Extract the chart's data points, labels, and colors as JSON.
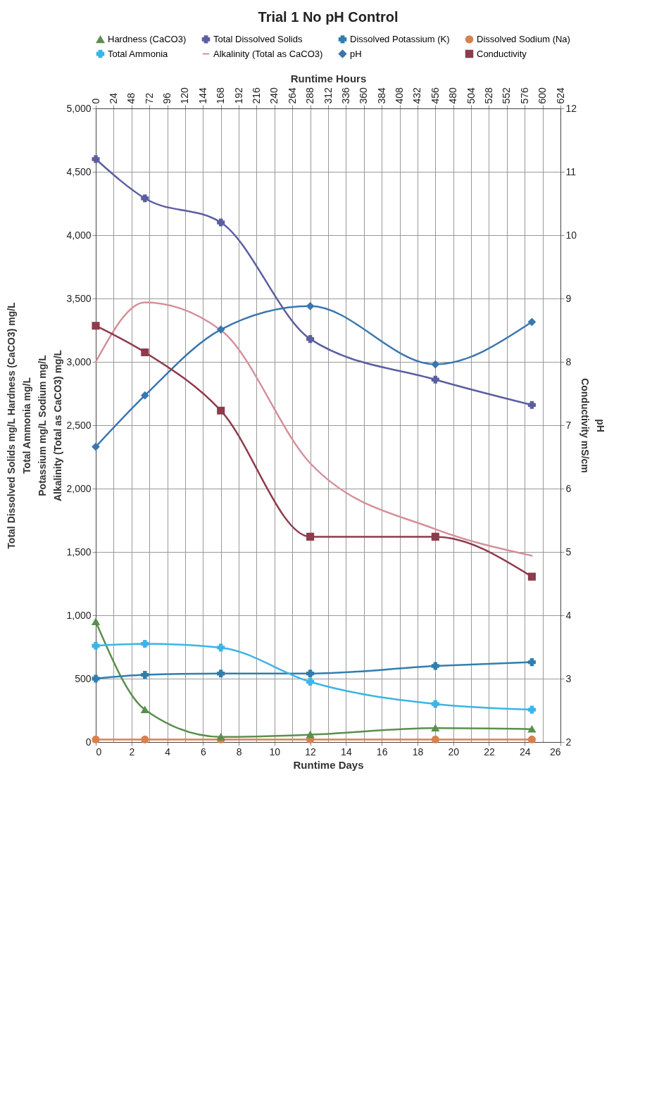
{
  "chart_data": {
    "type": "line",
    "title": "Trial 1 No pH Control",
    "xlabel": "Runtime Days",
    "x2label": "Runtime Hours",
    "ylabel": "Total Dissolved Solids   mg/L          Hardness (CaCO3)   mg/L\nTotal Ammonia   mg/L\nPotassium   mg/L          Sodium   mg/L\nAlkalinity (Total as CaCO3) mg/L",
    "y2label": "pH\nConductivity   mS/cm",
    "x": [
      0,
      2.75,
      7,
      12,
      19,
      24.4
    ],
    "xlim": [
      0,
      26
    ],
    "xticks": [
      0,
      2,
      4,
      6,
      8,
      10,
      12,
      14,
      16,
      18,
      20,
      22,
      24,
      26
    ],
    "x2lim": [
      0,
      624
    ],
    "x2ticks": [
      0,
      24,
      48,
      72,
      96,
      120,
      144,
      168,
      192,
      216,
      240,
      264,
      288,
      312,
      336,
      360,
      384,
      408,
      432,
      456,
      480,
      504,
      528,
      552,
      576,
      600,
      624
    ],
    "ylim": [
      0,
      5000
    ],
    "yticks": [
      0,
      500,
      {
        "value": 1000,
        "label": "1,000"
      },
      {
        "value": 1500,
        "label": "1,500"
      },
      {
        "value": 2000,
        "label": "2,000"
      },
      {
        "value": 2500,
        "label": "2,500"
      },
      {
        "value": 3000,
        "label": "3,000"
      },
      {
        "value": 3500,
        "label": "3,500"
      },
      {
        "value": 4000,
        "label": "4,000"
      },
      {
        "value": 4500,
        "label": "4,500"
      },
      {
        "value": 5000,
        "label": "5,000"
      }
    ],
    "y2lim": [
      2,
      12
    ],
    "y2ticks": [
      2,
      3,
      4,
      5,
      6,
      7,
      8,
      9,
      10,
      11,
      12
    ],
    "grid": true,
    "legend": "top",
    "series": [
      {
        "name": "Hardness (CaCO3)",
        "color": "#5b8f4e",
        "marker": "triangle",
        "values": [
          950,
          255,
          40,
          58,
          110,
          102
        ]
      },
      {
        "name": "Total Dissolved Solids",
        "color": "#5b5fa0",
        "marker": "cross",
        "values": [
          4600,
          4290,
          4100,
          3180,
          2860,
          2660
        ]
      },
      {
        "name": "Dissolved Potassium (K)",
        "color": "#2f7fae",
        "marker": "cross",
        "values": [
          500,
          530,
          540,
          540,
          600,
          630
        ]
      },
      {
        "name": "Dissolved Sodium (Na)",
        "color": "#d9804f",
        "marker": "circle",
        "values": [
          20,
          20,
          20,
          20,
          20,
          20
        ]
      },
      {
        "name": "Total Ammonia",
        "color": "#3cb4e6",
        "marker": "cross",
        "values": [
          760,
          775,
          745,
          475,
          300,
          255
        ]
      },
      {
        "name": "Alkalinity (Total as CaCO3)",
        "color": "#d4909a",
        "marker": "none",
        "values": [
          3000,
          3470,
          3250,
          2200,
          1680,
          1470
        ]
      },
      {
        "name": "pH",
        "color": "#3a76b0",
        "marker": "diamond",
        "axis": "y2",
        "values": [
          6.66,
          7.47,
          8.51,
          8.88,
          7.96,
          8.63
        ]
      },
      {
        "name": "Conductivity",
        "color": "#8e3b4c",
        "marker": "square",
        "axis": "y2",
        "values": [
          8.57,
          8.15,
          7.23,
          5.24,
          5.24,
          4.61
        ]
      }
    ]
  }
}
